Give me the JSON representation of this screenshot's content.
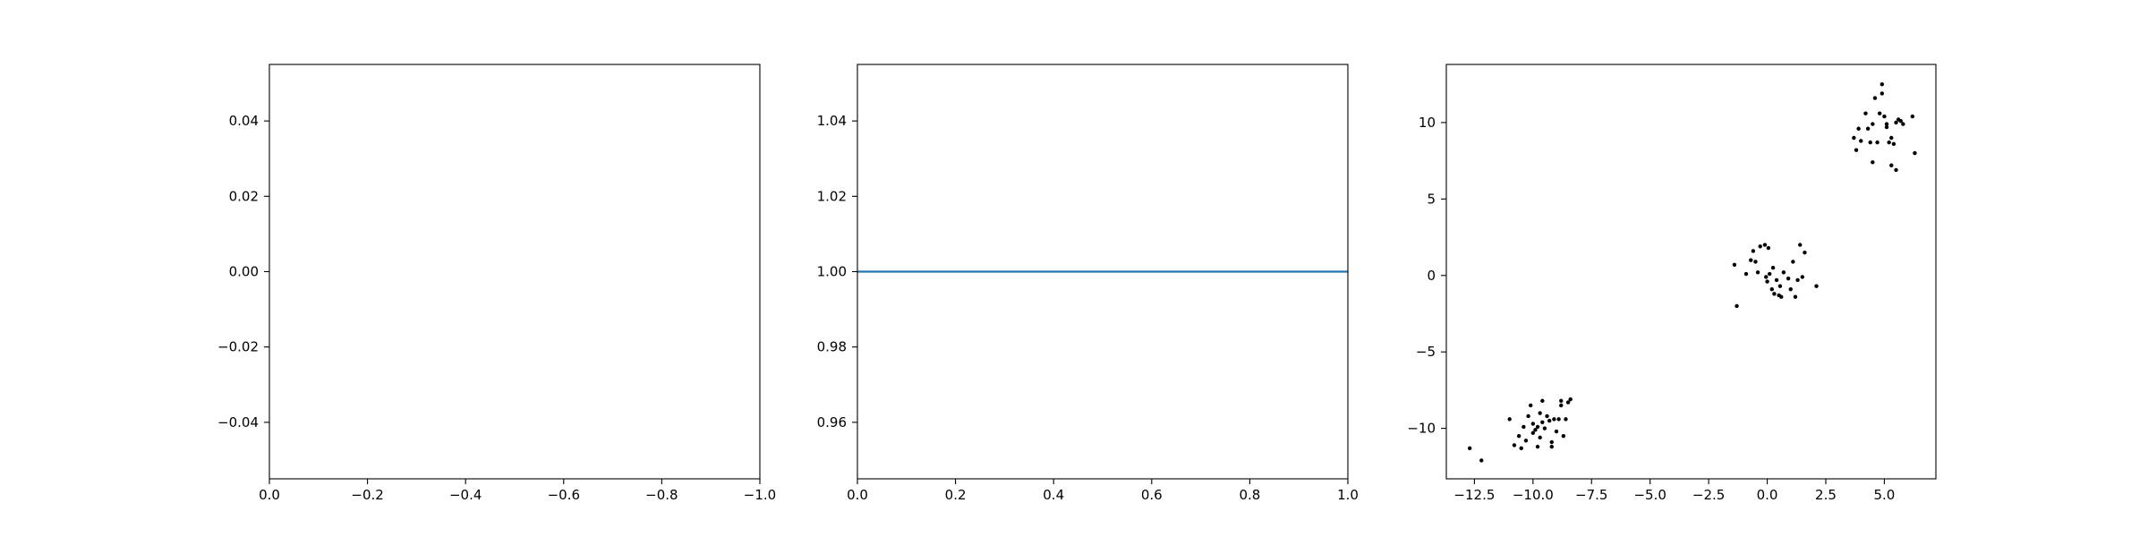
{
  "chart_data": [
    {
      "type": "line",
      "title": "",
      "xlabel": "",
      "ylabel": "",
      "grid": false,
      "xlim": [
        0.0,
        -1.0
      ],
      "ylim": [
        -0.055,
        0.055
      ],
      "x_ticks": [
        0.0,
        -0.2,
        -0.4,
        -0.6,
        -0.8,
        -1.0
      ],
      "x_tick_labels": [
        "0.0",
        "−0.2",
        "−0.4",
        "−0.6",
        "−0.8",
        "−1.0"
      ],
      "y_ticks": [
        -0.04,
        -0.02,
        0.0,
        0.02,
        0.04
      ],
      "y_tick_labels": [
        "−0.04",
        "−0.02",
        "0.00",
        "0.02",
        "0.04"
      ],
      "series": []
    },
    {
      "type": "line",
      "title": "",
      "xlabel": "",
      "ylabel": "",
      "grid": false,
      "xlim": [
        0.0,
        1.0
      ],
      "ylim": [
        0.945,
        1.055
      ],
      "x_ticks": [
        0.0,
        0.2,
        0.4,
        0.6,
        0.8,
        1.0
      ],
      "x_tick_labels": [
        "0.0",
        "0.2",
        "0.4",
        "0.6",
        "0.8",
        "1.0"
      ],
      "y_ticks": [
        0.96,
        0.98,
        1.0,
        1.02,
        1.04
      ],
      "y_tick_labels": [
        "0.96",
        "0.98",
        "1.00",
        "1.02",
        "1.04"
      ],
      "series": [
        {
          "color": "#1f77b4",
          "x": [
            0.0,
            1.0
          ],
          "y": [
            1.0,
            1.0
          ]
        }
      ]
    },
    {
      "type": "scatter",
      "title": "",
      "xlabel": "",
      "ylabel": "",
      "grid": false,
      "xlim": [
        -13.7,
        7.2
      ],
      "ylim": [
        -13.3,
        13.8
      ],
      "x_ticks": [
        -12.5,
        -10.0,
        -7.5,
        -5.0,
        -2.5,
        0.0,
        2.5,
        5.0
      ],
      "x_tick_labels": [
        "−12.5",
        "−10.0",
        "−7.5",
        "−5.0",
        "−2.5",
        "0.0",
        "2.5",
        "5.0"
      ],
      "y_ticks": [
        -10,
        -5,
        0,
        5,
        10
      ],
      "y_tick_labels": [
        "−10",
        "−5",
        "0",
        "5",
        "10"
      ],
      "series": [
        {
          "color": "#000000",
          "points": [
            [
              -12.7,
              -11.3
            ],
            [
              -12.2,
              -12.1
            ],
            [
              -11.0,
              -9.4
            ],
            [
              -10.8,
              -11.1
            ],
            [
              -10.6,
              -10.5
            ],
            [
              -10.5,
              -11.3
            ],
            [
              -10.4,
              -9.9
            ],
            [
              -10.3,
              -10.8
            ],
            [
              -10.2,
              -9.2
            ],
            [
              -10.1,
              -8.5
            ],
            [
              -10.0,
              -9.7
            ],
            [
              -10.0,
              -10.3
            ],
            [
              -9.9,
              -10.1
            ],
            [
              -9.8,
              -11.2
            ],
            [
              -9.8,
              -9.9
            ],
            [
              -9.7,
              -9.0
            ],
            [
              -9.7,
              -10.6
            ],
            [
              -9.6,
              -8.2
            ],
            [
              -9.6,
              -9.6
            ],
            [
              -9.5,
              -10.0
            ],
            [
              -9.4,
              -9.2
            ],
            [
              -9.3,
              -9.5
            ],
            [
              -9.2,
              -11.2
            ],
            [
              -9.2,
              -10.9
            ],
            [
              -9.1,
              -9.4
            ],
            [
              -9.0,
              -10.2
            ],
            [
              -8.9,
              -9.4
            ],
            [
              -8.8,
              -8.2
            ],
            [
              -8.8,
              -8.5
            ],
            [
              -8.7,
              -10.5
            ],
            [
              -8.6,
              -9.4
            ],
            [
              -8.5,
              -8.3
            ],
            [
              -8.4,
              -8.1
            ],
            [
              -1.4,
              0.7
            ],
            [
              -1.3,
              -2.0
            ],
            [
              -0.9,
              0.1
            ],
            [
              -0.7,
              1.0
            ],
            [
              -0.6,
              1.6
            ],
            [
              -0.5,
              0.9
            ],
            [
              -0.4,
              0.2
            ],
            [
              -0.3,
              1.9
            ],
            [
              -0.1,
              2.0
            ],
            [
              -0.05,
              -0.1
            ],
            [
              0.0,
              -0.4
            ],
            [
              0.05,
              1.8
            ],
            [
              0.1,
              0.1
            ],
            [
              0.2,
              -0.9
            ],
            [
              0.25,
              0.5
            ],
            [
              0.3,
              -1.2
            ],
            [
              0.4,
              -0.3
            ],
            [
              0.5,
              -1.3
            ],
            [
              0.55,
              -0.7
            ],
            [
              0.6,
              -1.4
            ],
            [
              0.7,
              0.2
            ],
            [
              0.9,
              -0.2
            ],
            [
              1.0,
              -0.9
            ],
            [
              1.1,
              0.9
            ],
            [
              1.2,
              -1.4
            ],
            [
              1.3,
              -0.3
            ],
            [
              1.4,
              2.0
            ],
            [
              1.5,
              -0.1
            ],
            [
              1.6,
              1.5
            ],
            [
              2.1,
              -0.7
            ],
            [
              3.7,
              9.0
            ],
            [
              3.8,
              8.2
            ],
            [
              3.9,
              9.6
            ],
            [
              4.0,
              8.8
            ],
            [
              4.2,
              10.6
            ],
            [
              4.3,
              9.6
            ],
            [
              4.4,
              8.7
            ],
            [
              4.5,
              7.4
            ],
            [
              4.5,
              9.9
            ],
            [
              4.6,
              11.6
            ],
            [
              4.7,
              8.7
            ],
            [
              4.8,
              10.6
            ],
            [
              4.9,
              12.5
            ],
            [
              4.9,
              11.9
            ],
            [
              5.0,
              10.4
            ],
            [
              5.1,
              9.7
            ],
            [
              5.1,
              9.9
            ],
            [
              5.2,
              8.7
            ],
            [
              5.3,
              7.2
            ],
            [
              5.3,
              9.0
            ],
            [
              5.4,
              8.6
            ],
            [
              5.5,
              6.9
            ],
            [
              5.5,
              10.0
            ],
            [
              5.6,
              10.2
            ],
            [
              5.7,
              10.1
            ],
            [
              5.8,
              9.9
            ],
            [
              6.2,
              10.4
            ],
            [
              6.3,
              8.0
            ]
          ]
        }
      ]
    }
  ]
}
